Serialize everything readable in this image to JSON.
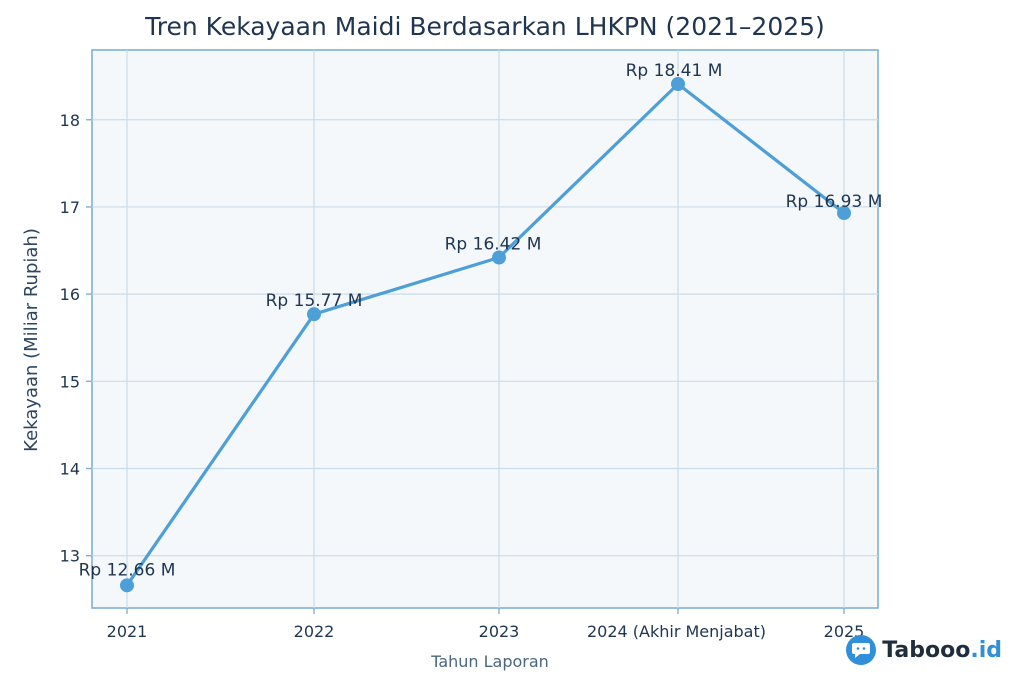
{
  "chart_data": {
    "type": "line",
    "title": "Tren Kekayaan Maidi Berdasarkan LHKPN (2021–2025)",
    "xlabel": "Tahun Laporan",
    "ylabel": "Kekayaan (Miliar Rupiah)",
    "categories": [
      "2021",
      "2022",
      "2023",
      "2024 (Akhir Menjabat)",
      "2025"
    ],
    "values": [
      12.66,
      15.77,
      16.42,
      18.41,
      16.93
    ],
    "data_labels": [
      "Rp 12.66 M",
      "Rp 15.77 M",
      "Rp 16.42 M",
      "Rp 18.41 M",
      "Rp 16.93 M"
    ],
    "yticks": [
      13,
      14,
      15,
      16,
      17,
      18
    ],
    "ylim": [
      12.4,
      18.8
    ],
    "grid": true,
    "legend": "none",
    "colors": {
      "line": "#4e9fd8",
      "grid": "#c9dcea",
      "frame": "#7fb0d6"
    }
  },
  "brand": {
    "name": "Tabooo",
    "suffix": ".id",
    "icon": "chat-bubble-icon"
  }
}
